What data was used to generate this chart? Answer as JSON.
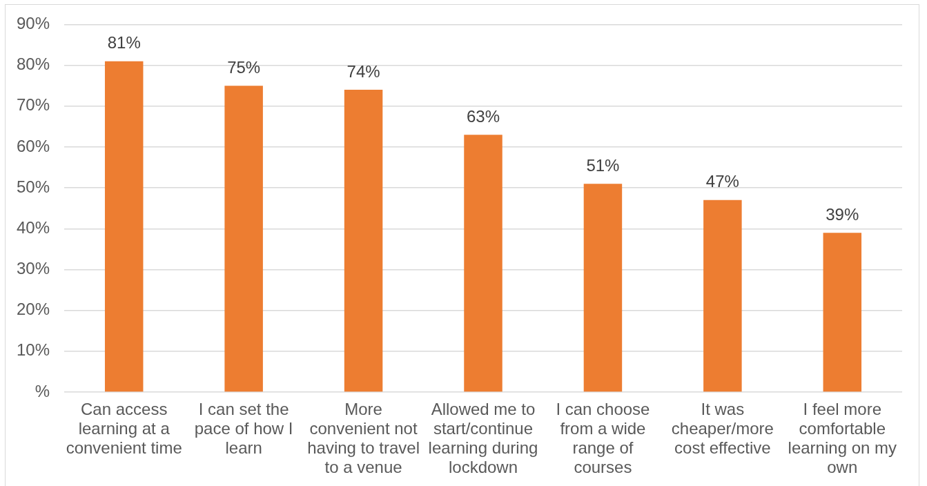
{
  "chart_data": {
    "type": "bar",
    "categories": [
      "Can access learning at a convenient time",
      "I can set the pace of how I learn",
      "More convenient not having to travel to a venue",
      "Allowed me to start/continue learning during lockdown",
      "I can choose from a wide range of courses",
      "It was cheaper/more cost effective",
      "I feel more comfortable learning on my own"
    ],
    "values": [
      81,
      75,
      74,
      63,
      51,
      47,
      39
    ],
    "value_labels": [
      "81%",
      "75%",
      "74%",
      "63%",
      "51%",
      "47%",
      "39%"
    ],
    "color": "#ed7d31",
    "ylim": [
      0,
      90
    ],
    "yticks": [
      {
        "value": 0,
        "label": "%"
      },
      {
        "value": 10,
        "label": "10%"
      },
      {
        "value": 20,
        "label": "20%"
      },
      {
        "value": 30,
        "label": "30%"
      },
      {
        "value": 40,
        "label": "40%"
      },
      {
        "value": 50,
        "label": "50%"
      },
      {
        "value": 60,
        "label": "60%"
      },
      {
        "value": 70,
        "label": "70%"
      },
      {
        "value": 80,
        "label": "80%"
      },
      {
        "value": 90,
        "label": "90%"
      }
    ],
    "grid": "y"
  }
}
